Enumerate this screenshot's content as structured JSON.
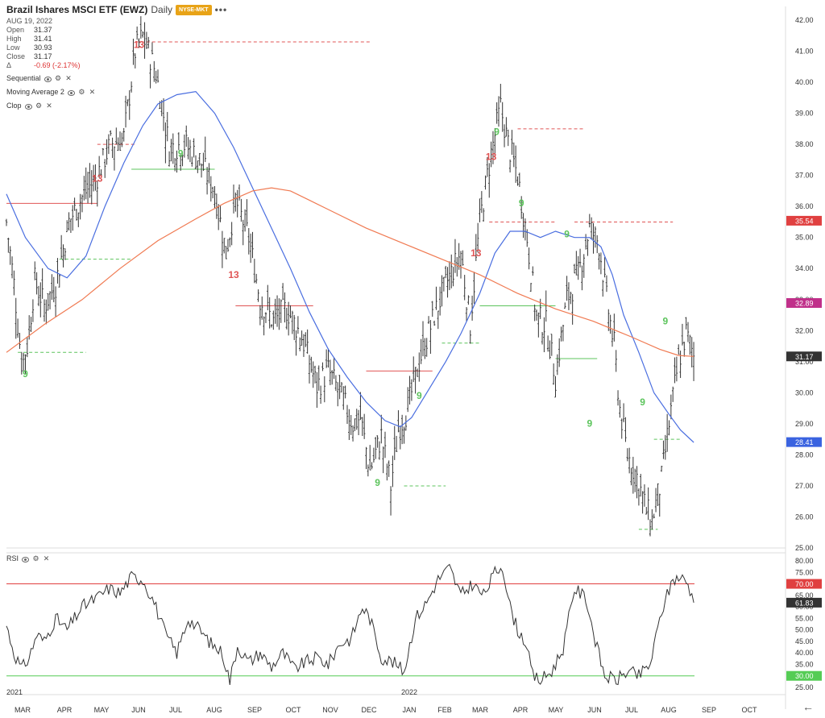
{
  "header": {
    "title": "Brazil Ishares MSCI ETF (EWZ)",
    "timeframe": "Daily",
    "exchange_badge": "NYSE-MKT",
    "more_label": "•••",
    "date": "AUG 19, 2022"
  },
  "ohlc": {
    "open_label": "Open",
    "open": "31.37",
    "high_label": "High",
    "high": "31.41",
    "low_label": "Low",
    "low": "30.93",
    "close_label": "Close",
    "close": "31.17",
    "change_label": "Δ",
    "change": "-0.69 (-2.17%)"
  },
  "indicators": [
    {
      "name": "Sequential"
    },
    {
      "name": "Moving Average 2"
    },
    {
      "name": "Clop"
    }
  ],
  "rsi_legend": {
    "name": "RSI"
  },
  "colors": {
    "price_bar": "#333333",
    "sma_fast": "#4a6ee0",
    "sma_slow": "#f07a52",
    "tdst_red": "#e05555",
    "tdst_green": "#5cc45c",
    "rsi_line": "#333333",
    "rsi_upper": "#e04040",
    "rsi_lower": "#55cc55"
  },
  "chart_data": [
    {
      "type": "ohlc",
      "title": "Brazil Ishares MSCI ETF (EWZ)",
      "x_axis": {
        "months": [
          "MAR",
          "APR",
          "MAY",
          "JUN",
          "JUL",
          "AUG",
          "SEP",
          "OCT",
          "NOV",
          "DEC",
          "JAN",
          "FEB",
          "MAR",
          "APR",
          "MAY",
          "JUN",
          "JUL",
          "AUG",
          "SEP",
          "OCT"
        ],
        "year_labels": [
          "2021",
          "2022"
        ]
      },
      "y_axis": {
        "ylim": [
          25,
          42
        ],
        "ticks": [
          "42.00",
          "41.00",
          "40.00",
          "39.00",
          "38.00",
          "37.00",
          "36.00",
          "35.00",
          "34.00",
          "33.00",
          "32.00",
          "31.00",
          "30.00",
          "29.00",
          "28.00",
          "27.00",
          "26.00",
          "25.00"
        ],
        "side": "right"
      },
      "price_path": [
        [
          0,
          35.5
        ],
        [
          4,
          33.5
        ],
        [
          8,
          31.0
        ],
        [
          11,
          31.5
        ],
        [
          15,
          33.6
        ],
        [
          20,
          32.8
        ],
        [
          26,
          33.5
        ],
        [
          33,
          35.5
        ],
        [
          40,
          36.3
        ],
        [
          48,
          37.0
        ],
        [
          55,
          38.0
        ],
        [
          62,
          38.2
        ],
        [
          68,
          41.0
        ],
        [
          72,
          41.5
        ],
        [
          79,
          40.3
        ],
        [
          86,
          37.9
        ],
        [
          94,
          38.0
        ],
        [
          102,
          37.5
        ],
        [
          110,
          36.5
        ],
        [
          116,
          34.5
        ],
        [
          121,
          36.2
        ],
        [
          128,
          35.0
        ],
        [
          134,
          33.0
        ],
        [
          141,
          32.3
        ],
        [
          148,
          32.7
        ],
        [
          156,
          31.8
        ],
        [
          164,
          30.2
        ],
        [
          170,
          30.7
        ],
        [
          176,
          30.0
        ],
        [
          183,
          29.0
        ],
        [
          187,
          29.2
        ],
        [
          192,
          27.5
        ],
        [
          198,
          28.6
        ],
        [
          203,
          27.0
        ],
        [
          207,
          28.8
        ],
        [
          212,
          29.5
        ],
        [
          218,
          31.0
        ],
        [
          226,
          32.5
        ],
        [
          233,
          33.6
        ],
        [
          240,
          34.5
        ],
        [
          245,
          32.2
        ],
        [
          250,
          35.5
        ],
        [
          256,
          37.7
        ],
        [
          261,
          39.2
        ],
        [
          265,
          38.0
        ],
        [
          270,
          37.0
        ],
        [
          275,
          35.0
        ],
        [
          280,
          32.4
        ],
        [
          285,
          32.2
        ],
        [
          290,
          30.5
        ],
        [
          296,
          33.0
        ],
        [
          302,
          33.8
        ],
        [
          308,
          35.3
        ],
        [
          313,
          34.8
        ],
        [
          317,
          33.0
        ],
        [
          321,
          31.5
        ],
        [
          324,
          29.5
        ],
        [
          328,
          28.0
        ],
        [
          333,
          27.3
        ],
        [
          338,
          26.2
        ],
        [
          341,
          25.9
        ],
        [
          346,
          27.2
        ],
        [
          350,
          29.0
        ],
        [
          355,
          31.0
        ],
        [
          359,
          31.9
        ],
        [
          363,
          31.2
        ]
      ],
      "series": [
        {
          "name": "Moving Average 2 (fast)",
          "color": "#4a6ee0",
          "path": [
            [
              0,
              36.4
            ],
            [
              10,
              35.0
            ],
            [
              22,
              34.0
            ],
            [
              32,
              33.7
            ],
            [
              42,
              34.4
            ],
            [
              52,
              36.0
            ],
            [
              62,
              37.4
            ],
            [
              72,
              38.6
            ],
            [
              80,
              39.3
            ],
            [
              90,
              39.6
            ],
            [
              100,
              39.7
            ],
            [
              110,
              39.0
            ],
            [
              120,
              37.9
            ],
            [
              130,
              36.6
            ],
            [
              140,
              35.3
            ],
            [
              150,
              34.0
            ],
            [
              160,
              32.6
            ],
            [
              170,
              31.4
            ],
            [
              180,
              30.5
            ],
            [
              190,
              29.7
            ],
            [
              200,
              29.1
            ],
            [
              208,
              28.9
            ],
            [
              214,
              29.2
            ],
            [
              222,
              30.0
            ],
            [
              232,
              31.0
            ],
            [
              240,
              31.9
            ],
            [
              250,
              33.2
            ],
            [
              258,
              34.5
            ],
            [
              266,
              35.2
            ],
            [
              274,
              35.2
            ],
            [
              282,
              35.0
            ],
            [
              290,
              35.2
            ],
            [
              300,
              35.0
            ],
            [
              308,
              35.0
            ],
            [
              314,
              34.7
            ],
            [
              320,
              33.8
            ],
            [
              326,
              32.5
            ],
            [
              334,
              31.3
            ],
            [
              342,
              30.0
            ],
            [
              350,
              29.3
            ],
            [
              356,
              28.8
            ],
            [
              363,
              28.4
            ]
          ]
        },
        {
          "name": "Moving Average 2 (slow)",
          "color": "#f07a52",
          "path": [
            [
              0,
              31.3
            ],
            [
              20,
              32.2
            ],
            [
              40,
              33.0
            ],
            [
              60,
              34.0
            ],
            [
              80,
              34.9
            ],
            [
              100,
              35.6
            ],
            [
              115,
              36.1
            ],
            [
              130,
              36.5
            ],
            [
              140,
              36.6
            ],
            [
              150,
              36.5
            ],
            [
              170,
              35.9
            ],
            [
              190,
              35.3
            ],
            [
              210,
              34.8
            ],
            [
              230,
              34.3
            ],
            [
              250,
              33.8
            ],
            [
              270,
              33.2
            ],
            [
              290,
              32.7
            ],
            [
              310,
              32.3
            ],
            [
              330,
              31.8
            ],
            [
              345,
              31.4
            ],
            [
              355,
              31.2
            ],
            [
              363,
              31.17
            ]
          ]
        },
        {
          "name": "TDST lines",
          "segments": [
            {
              "x0": 68,
              "x1": 192,
              "y": 41.3,
              "color": "#e05555",
              "dash": true
            },
            {
              "x0": 0,
              "x1": 48,
              "y": 36.1,
              "color": "#e05555",
              "dash": false
            },
            {
              "x0": 48,
              "x1": 68,
              "y": 38.0,
              "color": "#e05555",
              "dash": true
            },
            {
              "x0": 66,
              "x1": 110,
              "y": 37.2,
              "color": "#5cc45c",
              "dash": false
            },
            {
              "x0": 28,
              "x1": 66,
              "y": 34.3,
              "color": "#5cc45c",
              "dash": true
            },
            {
              "x0": 6,
              "x1": 42,
              "y": 31.3,
              "color": "#5cc45c",
              "dash": true
            },
            {
              "x0": 121,
              "x1": 162,
              "y": 32.8,
              "color": "#e05555",
              "dash": false
            },
            {
              "x0": 190,
              "x1": 225,
              "y": 30.7,
              "color": "#e05555",
              "dash": false
            },
            {
              "x0": 210,
              "x1": 232,
              "y": 27.0,
              "color": "#5cc45c",
              "dash": true
            },
            {
              "x0": 230,
              "x1": 250,
              "y": 31.6,
              "color": "#5cc45c",
              "dash": true
            },
            {
              "x0": 250,
              "x1": 290,
              "y": 32.8,
              "color": "#5cc45c",
              "dash": false
            },
            {
              "x0": 255,
              "x1": 290,
              "y": 35.5,
              "color": "#e05555",
              "dash": true
            },
            {
              "x0": 270,
              "x1": 305,
              "y": 38.5,
              "color": "#e05555",
              "dash": true
            },
            {
              "x0": 300,
              "x1": 352,
              "y": 35.5,
              "color": "#e05555",
              "dash": true
            },
            {
              "x0": 290,
              "x1": 312,
              "y": 31.1,
              "color": "#5cc45c",
              "dash": false
            },
            {
              "x0": 342,
              "x1": 356,
              "y": 28.5,
              "color": "#5cc45c",
              "dash": true
            },
            {
              "x0": 334,
              "x1": 344,
              "y": 25.6,
              "color": "#5cc45c",
              "dash": true
            }
          ]
        }
      ],
      "sequential_labels": [
        {
          "x": 10,
          "y": 30.5,
          "text": "9",
          "color": "#5cc45c",
          "size": "big"
        },
        {
          "x": 70,
          "y": 41.1,
          "text": "13",
          "color": "#e05555",
          "size": "big"
        },
        {
          "x": 48,
          "y": 36.8,
          "text": "13",
          "color": "#e05555",
          "size": "big"
        },
        {
          "x": 92,
          "y": 37.6,
          "text": "9",
          "color": "#5cc45c",
          "size": "big"
        },
        {
          "x": 120,
          "y": 33.7,
          "text": "13",
          "color": "#e05555",
          "size": "big"
        },
        {
          "x": 196,
          "y": 27.0,
          "text": "9",
          "color": "#5cc45c",
          "size": "big"
        },
        {
          "x": 218,
          "y": 29.8,
          "text": "9",
          "color": "#5cc45c",
          "size": "big"
        },
        {
          "x": 256,
          "y": 37.5,
          "text": "13",
          "color": "#e05555",
          "size": "big"
        },
        {
          "x": 259,
          "y": 38.3,
          "text": "9",
          "color": "#5cc45c",
          "size": "big"
        },
        {
          "x": 272,
          "y": 36.0,
          "text": "9",
          "color": "#5cc45c",
          "size": "big"
        },
        {
          "x": 248,
          "y": 34.4,
          "text": "13",
          "color": "#e05555",
          "size": "big"
        },
        {
          "x": 296,
          "y": 35.0,
          "text": "9",
          "color": "#5cc45c",
          "size": "big"
        },
        {
          "x": 308,
          "y": 28.9,
          "text": "9",
          "color": "#5cc45c",
          "size": "big"
        },
        {
          "x": 336,
          "y": 29.6,
          "text": "9",
          "color": "#5cc45c",
          "size": "big"
        },
        {
          "x": 348,
          "y": 32.2,
          "text": "9",
          "color": "#5cc45c",
          "size": "big"
        }
      ],
      "last_price_label": "31.17",
      "price_labels": [
        {
          "value": 35.54,
          "text": "35.54",
          "color": "#e04040"
        },
        {
          "value": 32.89,
          "text": "32.89",
          "color": "#c0308a"
        },
        {
          "value": 31.17,
          "text": "31.17",
          "color": "#333333"
        },
        {
          "value": 28.41,
          "text": "28.41",
          "color": "#3a63e0"
        }
      ]
    },
    {
      "type": "line",
      "title": "RSI",
      "ylim": [
        25,
        80
      ],
      "ticks": [
        "80.00",
        "75.00",
        "70.00",
        "65.00",
        "60.00",
        "55.00",
        "50.00",
        "45.00",
        "40.00",
        "35.00",
        "30.00",
        "25.00"
      ],
      "levels": [
        {
          "value": 70,
          "text": "70.00",
          "color": "#e04040"
        },
        {
          "value": 30,
          "text": "30.00",
          "color": "#55cc55"
        }
      ],
      "current": {
        "value": 61.83,
        "text": "61.83",
        "color": "#333333"
      },
      "path": [
        [
          0,
          52
        ],
        [
          4,
          40
        ],
        [
          8,
          33
        ],
        [
          12,
          38
        ],
        [
          16,
          48
        ],
        [
          20,
          45
        ],
        [
          26,
          55
        ],
        [
          32,
          50
        ],
        [
          40,
          60
        ],
        [
          48,
          64
        ],
        [
          54,
          68
        ],
        [
          60,
          66
        ],
        [
          66,
          73
        ],
        [
          72,
          72
        ],
        [
          78,
          62
        ],
        [
          84,
          48
        ],
        [
          90,
          40
        ],
        [
          96,
          55
        ],
        [
          102,
          50
        ],
        [
          108,
          44
        ],
        [
          114,
          40
        ],
        [
          118,
          28
        ],
        [
          122,
          43
        ],
        [
          128,
          36
        ],
        [
          134,
          40
        ],
        [
          140,
          34
        ],
        [
          146,
          40
        ],
        [
          152,
          33
        ],
        [
          158,
          36
        ],
        [
          164,
          38
        ],
        [
          170,
          35
        ],
        [
          176,
          44
        ],
        [
          182,
          46
        ],
        [
          188,
          60
        ],
        [
          192,
          55
        ],
        [
          198,
          38
        ],
        [
          204,
          36
        ],
        [
          210,
          32
        ],
        [
          216,
          55
        ],
        [
          222,
          62
        ],
        [
          228,
          72
        ],
        [
          234,
          77
        ],
        [
          240,
          65
        ],
        [
          246,
          70
        ],
        [
          252,
          65
        ],
        [
          258,
          75
        ],
        [
          262,
          78
        ],
        [
          266,
          60
        ],
        [
          270,
          50
        ],
        [
          274,
          45
        ],
        [
          278,
          30
        ],
        [
          282,
          28
        ],
        [
          288,
          32
        ],
        [
          294,
          42
        ],
        [
          300,
          68
        ],
        [
          306,
          64
        ],
        [
          312,
          42
        ],
        [
          316,
          30
        ],
        [
          322,
          28
        ],
        [
          328,
          32
        ],
        [
          334,
          30
        ],
        [
          340,
          35
        ],
        [
          346,
          58
        ],
        [
          352,
          72
        ],
        [
          356,
          73
        ],
        [
          360,
          70
        ],
        [
          363,
          61.83
        ]
      ]
    }
  ]
}
